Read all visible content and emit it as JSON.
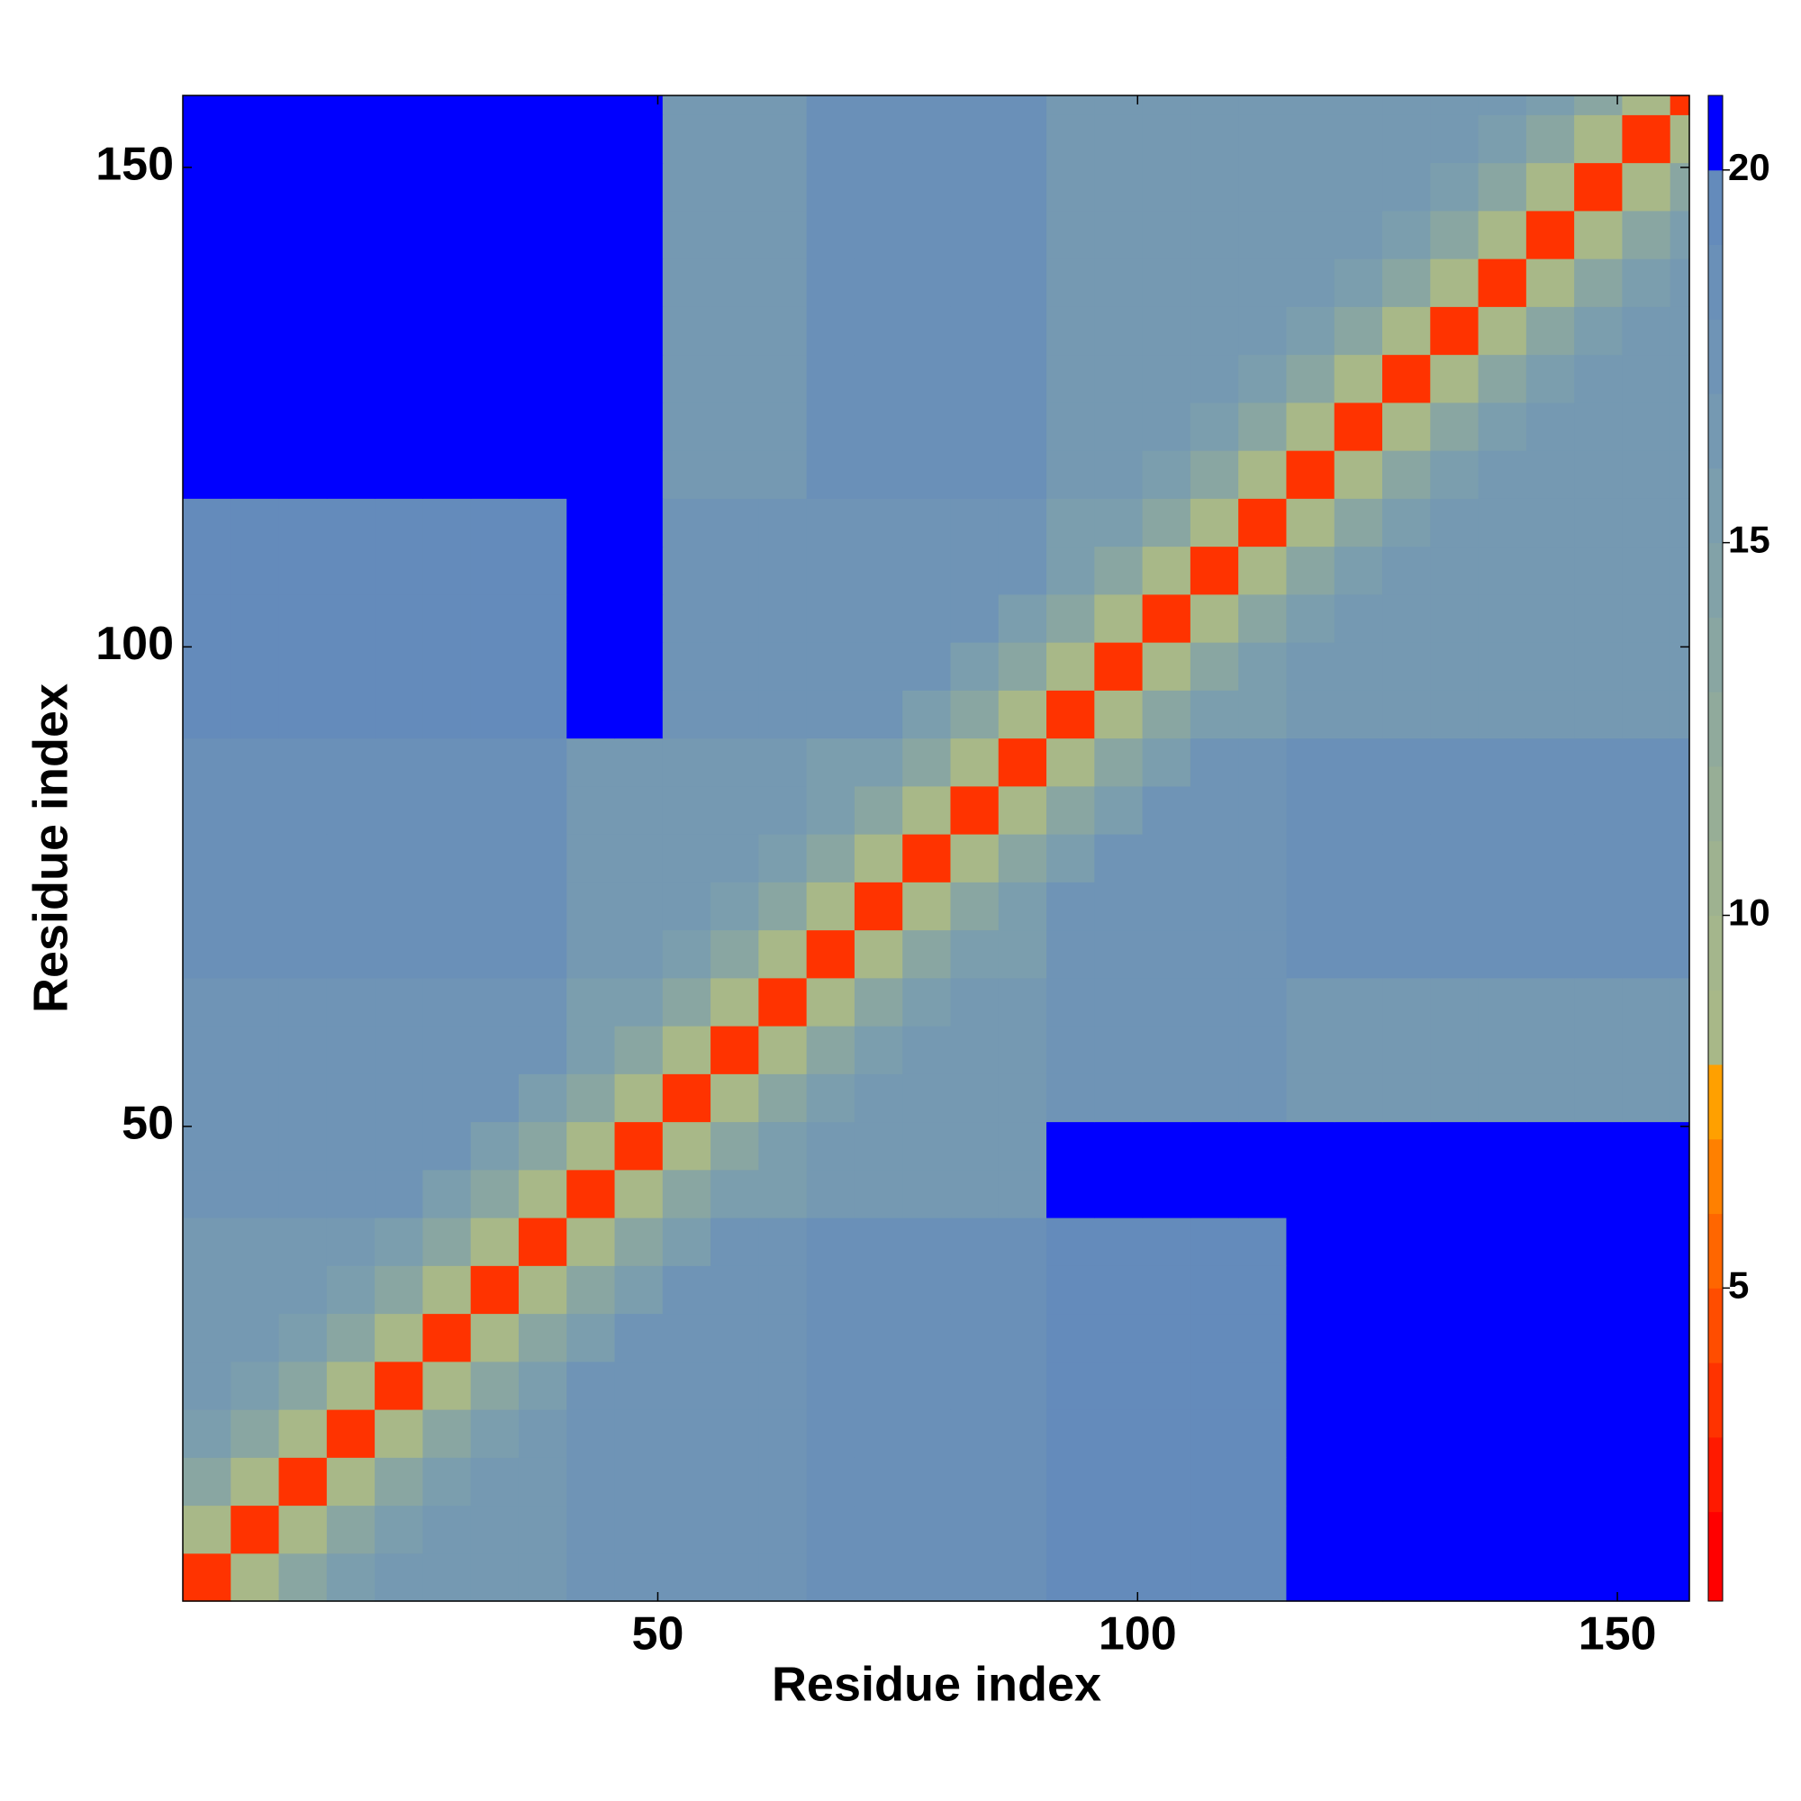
{
  "chart_data": {
    "type": "heatmap",
    "xlabel": "Residue index",
    "ylabel": "Residue index",
    "xlim": [
      0.5,
      157.5
    ],
    "ylim": [
      0.5,
      157.5
    ],
    "xticks": [
      50,
      100,
      150
    ],
    "yticks": [
      50,
      100,
      150
    ],
    "bins": [
      0.5,
      5.5,
      10.5,
      15.5,
      20.5,
      25.5,
      30.5,
      35.5,
      40.5,
      45.5,
      50.5,
      55.5,
      60.5,
      65.5,
      70.5,
      75.5,
      80.5,
      85.5,
      90.5,
      95.5,
      100.5,
      105.5,
      110.5,
      115.5,
      120.5,
      125.5,
      130.5,
      135.5,
      140.5,
      145.5,
      150.5,
      155.5,
      157.5
    ],
    "colormap": {
      "bounds": [
        0.8,
        2,
        3,
        4,
        5,
        6,
        7,
        8,
        9,
        10,
        11,
        12,
        13,
        14,
        15,
        16,
        17,
        18,
        19,
        20,
        21
      ],
      "colors": [
        "#ff0000",
        "#ff1a00",
        "#ff3300",
        "#ff4d00",
        "#ff6600",
        "#ff8000",
        "#ffa000",
        "#a8b888",
        "#a4b68c",
        "#9eb290",
        "#97ae96",
        "#90aa9c",
        "#89a6a2",
        "#82a2a8",
        "#7b9eae",
        "#7599b2",
        "#6f94b6",
        "#6a90b8",
        "#648bbb",
        "#0000ff"
      ]
    },
    "cbticks": [
      5,
      10,
      15,
      20
    ],
    "z": [
      [
        3,
        8,
        13,
        15,
        16,
        16,
        16,
        16,
        17,
        17,
        17,
        17,
        17,
        18,
        18,
        18,
        18,
        18,
        19,
        19,
        19,
        19,
        19,
        21,
        21,
        21,
        21,
        21,
        21,
        21,
        21,
        21
      ],
      [
        8,
        3,
        8,
        13,
        15,
        16,
        16,
        16,
        17,
        17,
        17,
        17,
        17,
        18,
        18,
        18,
        18,
        18,
        19,
        19,
        19,
        19,
        19,
        21,
        21,
        21,
        21,
        21,
        21,
        21,
        21,
        21
      ],
      [
        13,
        8,
        3,
        8,
        13,
        15,
        16,
        16,
        17,
        17,
        17,
        17,
        17,
        18,
        18,
        18,
        18,
        18,
        19,
        19,
        19,
        19,
        19,
        21,
        21,
        21,
        21,
        21,
        21,
        21,
        21,
        21
      ],
      [
        15,
        13,
        8,
        3,
        8,
        13,
        15,
        16,
        17,
        17,
        17,
        17,
        17,
        18,
        18,
        18,
        18,
        18,
        19,
        19,
        19,
        19,
        19,
        21,
        21,
        21,
        21,
        21,
        21,
        21,
        21,
        21
      ],
      [
        16,
        15,
        13,
        8,
        3,
        8,
        13,
        15,
        17,
        17,
        17,
        17,
        17,
        18,
        18,
        18,
        18,
        18,
        19,
        19,
        19,
        19,
        19,
        21,
        21,
        21,
        21,
        21,
        21,
        21,
        21,
        21
      ],
      [
        16,
        16,
        15,
        13,
        8,
        3,
        8,
        13,
        15,
        17,
        17,
        17,
        17,
        18,
        18,
        18,
        18,
        18,
        19,
        19,
        19,
        19,
        19,
        21,
        21,
        21,
        21,
        21,
        21,
        21,
        21,
        21
      ],
      [
        16,
        16,
        16,
        15,
        13,
        8,
        3,
        8,
        13,
        15,
        17,
        17,
        17,
        18,
        18,
        18,
        18,
        18,
        19,
        19,
        19,
        19,
        19,
        21,
        21,
        21,
        21,
        21,
        21,
        21,
        21,
        21
      ],
      [
        16,
        16,
        16,
        16,
        15,
        13,
        8,
        3,
        8,
        13,
        15,
        17,
        17,
        18,
        18,
        18,
        18,
        18,
        19,
        19,
        19,
        19,
        19,
        21,
        21,
        21,
        21,
        21,
        21,
        21,
        21,
        21
      ],
      [
        17,
        17,
        17,
        17,
        17,
        15,
        13,
        8,
        3,
        8,
        13,
        15,
        15,
        16,
        16,
        16,
        16,
        16,
        20,
        20,
        20,
        20,
        20,
        20,
        20,
        20,
        20,
        20,
        20,
        20,
        20,
        20
      ],
      [
        17,
        17,
        17,
        17,
        17,
        17,
        15,
        13,
        8,
        3,
        8,
        13,
        15,
        16,
        16,
        16,
        16,
        16,
        20,
        20,
        20,
        20,
        20,
        20,
        20,
        20,
        20,
        20,
        20,
        20,
        20,
        20
      ],
      [
        17,
        17,
        17,
        17,
        17,
        17,
        17,
        15,
        13,
        8,
        3,
        8,
        13,
        15,
        16,
        16,
        16,
        16,
        17,
        17,
        17,
        17,
        17,
        16,
        16,
        16,
        16,
        16,
        16,
        16,
        16,
        16
      ],
      [
        17,
        17,
        17,
        17,
        17,
        17,
        17,
        17,
        15,
        13,
        8,
        3,
        8,
        13,
        15,
        16,
        16,
        16,
        17,
        17,
        17,
        17,
        17,
        16,
        16,
        16,
        16,
        16,
        16,
        16,
        16,
        16
      ],
      [
        17,
        17,
        17,
        17,
        17,
        17,
        17,
        17,
        15,
        15,
        13,
        8,
        3,
        8,
        13,
        15,
        16,
        16,
        17,
        17,
        17,
        17,
        17,
        16,
        16,
        16,
        16,
        16,
        16,
        16,
        16,
        16
      ],
      [
        18,
        18,
        18,
        18,
        18,
        18,
        18,
        18,
        16,
        16,
        15,
        13,
        8,
        3,
        8,
        13,
        15,
        15,
        17,
        17,
        17,
        17,
        17,
        18,
        18,
        18,
        18,
        18,
        18,
        18,
        18,
        18
      ],
      [
        18,
        18,
        18,
        18,
        18,
        18,
        18,
        18,
        16,
        16,
        16,
        15,
        13,
        8,
        3,
        8,
        13,
        15,
        17,
        17,
        17,
        17,
        17,
        18,
        18,
        18,
        18,
        18,
        18,
        18,
        18,
        18
      ],
      [
        18,
        18,
        18,
        18,
        18,
        18,
        18,
        18,
        16,
        16,
        16,
        16,
        15,
        13,
        8,
        3,
        8,
        13,
        15,
        17,
        17,
        17,
        17,
        18,
        18,
        18,
        18,
        18,
        18,
        18,
        18,
        18
      ],
      [
        18,
        18,
        18,
        18,
        18,
        18,
        18,
        18,
        16,
        16,
        16,
        16,
        16,
        15,
        13,
        8,
        3,
        8,
        13,
        15,
        17,
        17,
        17,
        18,
        18,
        18,
        18,
        18,
        18,
        18,
        18,
        18
      ],
      [
        18,
        18,
        18,
        18,
        18,
        18,
        18,
        18,
        16,
        16,
        16,
        16,
        16,
        15,
        15,
        13,
        8,
        3,
        8,
        13,
        15,
        17,
        17,
        18,
        18,
        18,
        18,
        18,
        18,
        18,
        18,
        18
      ],
      [
        19,
        19,
        19,
        19,
        19,
        19,
        19,
        19,
        20,
        20,
        17,
        17,
        17,
        17,
        17,
        15,
        13,
        8,
        3,
        8,
        13,
        15,
        15,
        16,
        16,
        16,
        16,
        16,
        16,
        16,
        16,
        16
      ],
      [
        19,
        19,
        19,
        19,
        19,
        19,
        19,
        19,
        20,
        20,
        17,
        17,
        17,
        17,
        17,
        17,
        15,
        13,
        8,
        3,
        8,
        13,
        15,
        16,
        16,
        16,
        16,
        16,
        16,
        16,
        16,
        16
      ],
      [
        19,
        19,
        19,
        19,
        19,
        19,
        19,
        19,
        20,
        20,
        17,
        17,
        17,
        17,
        17,
        17,
        17,
        15,
        13,
        8,
        3,
        8,
        13,
        15,
        16,
        16,
        16,
        16,
        16,
        16,
        16,
        16
      ],
      [
        19,
        19,
        19,
        19,
        19,
        19,
        19,
        19,
        20,
        20,
        17,
        17,
        17,
        17,
        17,
        17,
        17,
        17,
        15,
        13,
        8,
        3,
        8,
        13,
        15,
        16,
        16,
        16,
        16,
        16,
        16,
        16
      ],
      [
        19,
        19,
        19,
        19,
        19,
        19,
        19,
        19,
        20,
        20,
        17,
        17,
        17,
        17,
        17,
        17,
        17,
        17,
        15,
        15,
        13,
        8,
        3,
        8,
        13,
        15,
        16,
        16,
        16,
        16,
        16,
        16
      ],
      [
        21,
        21,
        21,
        21,
        21,
        21,
        21,
        21,
        20,
        20,
        16,
        16,
        16,
        18,
        18,
        18,
        18,
        18,
        16,
        16,
        15,
        13,
        8,
        3,
        8,
        13,
        15,
        16,
        16,
        16,
        16,
        16
      ],
      [
        21,
        21,
        21,
        21,
        21,
        21,
        21,
        21,
        20,
        20,
        16,
        16,
        16,
        18,
        18,
        18,
        18,
        18,
        16,
        16,
        16,
        15,
        13,
        8,
        3,
        8,
        13,
        15,
        16,
        16,
        16,
        16
      ],
      [
        21,
        21,
        21,
        21,
        21,
        21,
        21,
        21,
        20,
        20,
        16,
        16,
        16,
        18,
        18,
        18,
        18,
        18,
        16,
        16,
        16,
        16,
        15,
        13,
        8,
        3,
        8,
        13,
        15,
        16,
        16,
        16
      ],
      [
        21,
        21,
        21,
        21,
        21,
        21,
        21,
        21,
        20,
        20,
        16,
        16,
        16,
        18,
        18,
        18,
        18,
        18,
        16,
        16,
        16,
        16,
        16,
        15,
        13,
        8,
        3,
        8,
        13,
        15,
        16,
        16
      ],
      [
        21,
        21,
        21,
        21,
        21,
        21,
        21,
        21,
        20,
        20,
        16,
        16,
        16,
        18,
        18,
        18,
        18,
        18,
        16,
        16,
        16,
        16,
        16,
        16,
        15,
        13,
        8,
        3,
        8,
        13,
        15,
        16
      ],
      [
        21,
        21,
        21,
        21,
        21,
        21,
        21,
        21,
        20,
        20,
        16,
        16,
        16,
        18,
        18,
        18,
        18,
        18,
        16,
        16,
        16,
        16,
        16,
        16,
        16,
        15,
        13,
        8,
        3,
        8,
        13,
        15
      ],
      [
        21,
        21,
        21,
        21,
        21,
        21,
        21,
        21,
        20,
        20,
        16,
        16,
        16,
        18,
        18,
        18,
        18,
        18,
        16,
        16,
        16,
        16,
        16,
        16,
        16,
        16,
        15,
        13,
        8,
        3,
        8,
        13
      ],
      [
        21,
        21,
        21,
        21,
        21,
        21,
        21,
        21,
        20,
        20,
        16,
        16,
        16,
        18,
        18,
        18,
        18,
        18,
        16,
        16,
        16,
        16,
        16,
        16,
        16,
        16,
        16,
        15,
        13,
        8,
        3,
        8
      ],
      [
        21,
        21,
        21,
        21,
        21,
        21,
        21,
        21,
        20,
        20,
        16,
        16,
        16,
        18,
        18,
        18,
        18,
        18,
        16,
        16,
        16,
        16,
        16,
        16,
        16,
        16,
        16,
        16,
        15,
        13,
        8,
        3
      ]
    ]
  }
}
